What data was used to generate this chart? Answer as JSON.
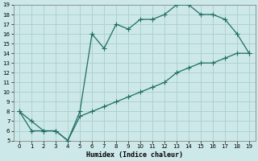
{
  "xlabel": "Humidex (Indice chaleur)",
  "xlim": [
    -0.5,
    19.5
  ],
  "ylim": [
    5,
    19
  ],
  "xticks": [
    0,
    1,
    2,
    3,
    4,
    5,
    6,
    7,
    8,
    9,
    10,
    11,
    12,
    13,
    14,
    15,
    16,
    17,
    18,
    19
  ],
  "yticks": [
    5,
    6,
    7,
    8,
    9,
    10,
    11,
    12,
    13,
    14,
    15,
    16,
    17,
    18,
    19
  ],
  "bg_color": "#cde8e8",
  "grid_color": "#aacece",
  "line_color": "#1e6e64",
  "upper_x": [
    0,
    1,
    2,
    3,
    4,
    5,
    6,
    7,
    8,
    9,
    10,
    11,
    12,
    13,
    14,
    15,
    16,
    17,
    18,
    19
  ],
  "upper_y": [
    8,
    6,
    6,
    6,
    5,
    8,
    16,
    14.5,
    17,
    16.5,
    17.5,
    17.5,
    18,
    19,
    19,
    18,
    18,
    17.5,
    16,
    14
  ],
  "lower_x": [
    0,
    1,
    2,
    3,
    4,
    5,
    6,
    7,
    8,
    9,
    10,
    11,
    12,
    13,
    14,
    15,
    16,
    17,
    18,
    19
  ],
  "lower_y": [
    8,
    7,
    6,
    6,
    5,
    7.5,
    8,
    8.5,
    9,
    9.5,
    10,
    10.5,
    11,
    12,
    12.5,
    13,
    13,
    13.5,
    14,
    14
  ]
}
